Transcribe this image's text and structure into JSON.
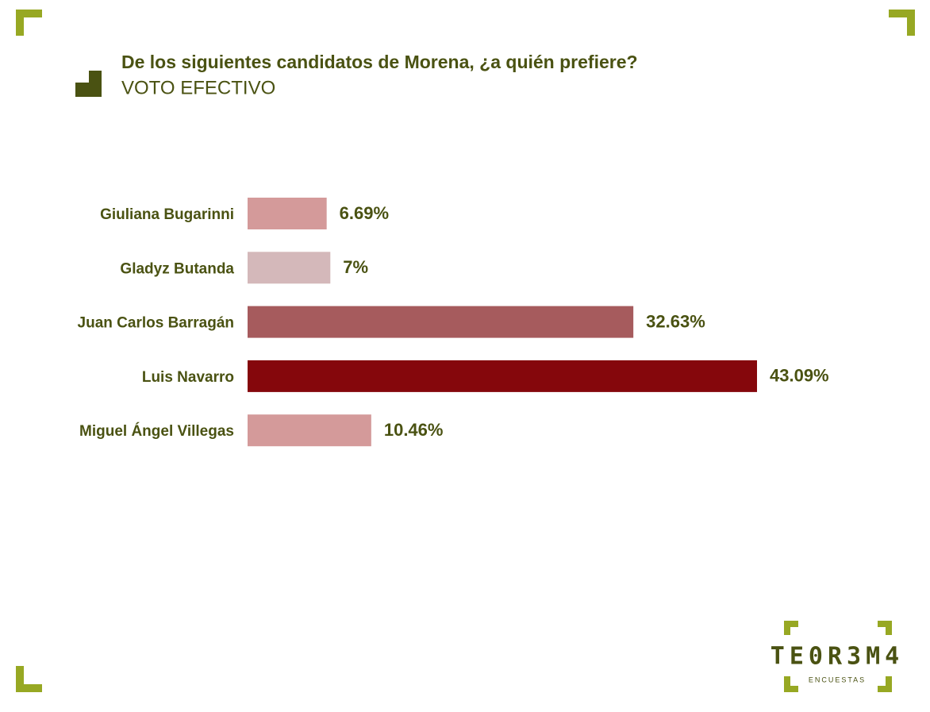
{
  "chart_data": {
    "type": "hbar",
    "title": "De los siguientes candidatos de Morena, ¿a quién prefiere?",
    "subtitle": "VOTO EFECTIVO",
    "categories": [
      "Giuliana Bugarinni",
      "Gladyz Butanda",
      "Juan Carlos Barragán",
      "Luis Navarro",
      "Miguel Ángel Villegas"
    ],
    "values": [
      6.69,
      7,
      32.63,
      43.09,
      10.46
    ],
    "value_labels": [
      "6.69%",
      "7%",
      "32.63%",
      "43.09%",
      "10.46%"
    ],
    "colors": [
      "#d49a9a",
      "#d4b8ba",
      "#a65b5d",
      "#85070c",
      "#d49a9a"
    ]
  },
  "logo": {
    "name": "TE0R3M4",
    "tagline": "ENCUESTAS"
  }
}
